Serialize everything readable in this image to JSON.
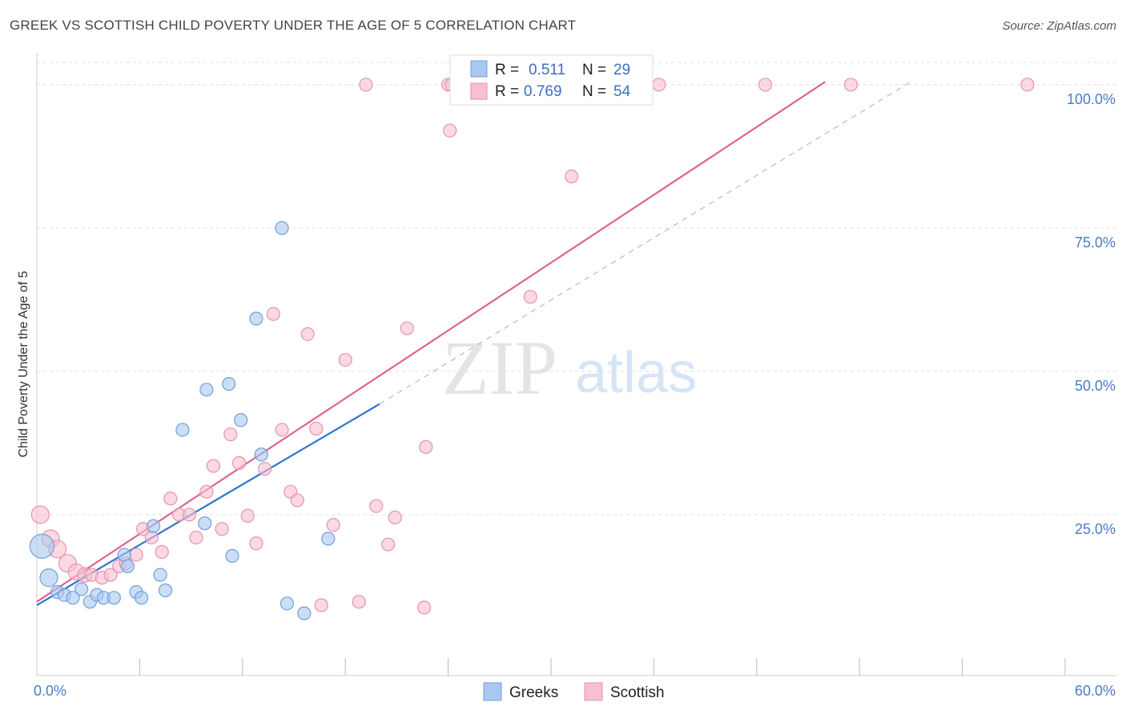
{
  "header": {
    "title": "GREEK VS SCOTTISH CHILD POVERTY UNDER THE AGE OF 5 CORRELATION CHART",
    "source": "Source: ZipAtlas.com"
  },
  "watermark": {
    "zip": "ZIP",
    "atlas": "atlas"
  },
  "legend": {
    "r_label": "R =",
    "n_label": "N =",
    "items": [
      {
        "series": "Greeks",
        "r": "0.511",
        "n": "29",
        "color": "#a9c8f0",
        "stroke": "#6f9fdc"
      },
      {
        "series": "Scottish",
        "r": "0.769",
        "n": "54",
        "color": "#f7bfd0",
        "stroke": "#e892ad"
      }
    ]
  },
  "bottom_legend": {
    "greeks": "Greeks",
    "scottish": "Scottish"
  },
  "colors": {
    "greeks_line": "#2e74d0",
    "scottish_line": "#e0638f",
    "tick": "#4a7cc9",
    "grid": "#dddddd"
  },
  "chart_data": {
    "type": "scatter",
    "title": "GREEK VS SCOTTISH CHILD POVERTY UNDER THE AGE OF 5 CORRELATION CHART",
    "xlabel": "",
    "ylabel": "Child Poverty Under the Age of 5",
    "xlim": [
      0,
      60
    ],
    "ylim": [
      0,
      105
    ],
    "x_tick_labels": [
      "0.0%",
      "60.0%"
    ],
    "y_ticks": [
      25,
      50,
      75,
      100
    ],
    "y_tick_labels": [
      "25.0%",
      "50.0%",
      "75.0%",
      "100.0%"
    ],
    "grid": true,
    "legend_position": "top-center",
    "series": [
      {
        "name": "Greeks",
        "points": [
          [
            0.3,
            19.5,
            30
          ],
          [
            0.7,
            14.0,
            22
          ],
          [
            1.2,
            11.5,
            16
          ],
          [
            1.6,
            11.0,
            16
          ],
          [
            2.1,
            10.5,
            16
          ],
          [
            2.6,
            12.0,
            16
          ],
          [
            3.1,
            9.8,
            16
          ],
          [
            3.5,
            11.0,
            16
          ],
          [
            3.9,
            10.5,
            16
          ],
          [
            4.5,
            10.5,
            16
          ],
          [
            5.1,
            18.0,
            16
          ],
          [
            5.3,
            16.0,
            16
          ],
          [
            5.8,
            11.5,
            16
          ],
          [
            6.1,
            10.5,
            16
          ],
          [
            6.8,
            23.0,
            16
          ],
          [
            7.2,
            14.5,
            16
          ],
          [
            7.5,
            11.8,
            16
          ],
          [
            8.5,
            39.8,
            16
          ],
          [
            9.8,
            23.5,
            16
          ],
          [
            9.9,
            46.8,
            16
          ],
          [
            11.2,
            47.8,
            16
          ],
          [
            11.4,
            17.8,
            16
          ],
          [
            11.9,
            41.5,
            16
          ],
          [
            12.8,
            59.2,
            16
          ],
          [
            13.1,
            35.5,
            16
          ],
          [
            14.3,
            75.0,
            16
          ],
          [
            14.6,
            9.5,
            16
          ],
          [
            15.6,
            7.8,
            16
          ],
          [
            17.0,
            20.8,
            16
          ]
        ]
      },
      {
        "name": "Scottish",
        "points": [
          [
            0.2,
            25.0,
            22
          ],
          [
            0.8,
            20.8,
            22
          ],
          [
            1.2,
            19.0,
            22
          ],
          [
            1.8,
            16.5,
            22
          ],
          [
            2.3,
            15.0,
            20
          ],
          [
            2.8,
            14.5,
            18
          ],
          [
            3.2,
            14.5,
            16
          ],
          [
            3.8,
            14.0,
            16
          ],
          [
            4.3,
            14.5,
            16
          ],
          [
            4.8,
            16.0,
            16
          ],
          [
            5.2,
            16.5,
            16
          ],
          [
            5.8,
            18.0,
            16
          ],
          [
            6.2,
            22.5,
            16
          ],
          [
            6.7,
            21.0,
            16
          ],
          [
            7.3,
            18.5,
            16
          ],
          [
            7.8,
            27.8,
            16
          ],
          [
            8.3,
            25.0,
            16
          ],
          [
            8.9,
            25.0,
            16
          ],
          [
            9.3,
            21.0,
            16
          ],
          [
            9.9,
            29.0,
            16
          ],
          [
            10.3,
            33.5,
            16
          ],
          [
            10.8,
            22.5,
            16
          ],
          [
            11.3,
            39.0,
            16
          ],
          [
            11.8,
            34.0,
            16
          ],
          [
            12.3,
            24.8,
            16
          ],
          [
            12.8,
            20.0,
            16
          ],
          [
            13.3,
            33.0,
            16
          ],
          [
            13.8,
            60.0,
            16
          ],
          [
            14.3,
            39.8,
            16
          ],
          [
            14.8,
            29.0,
            16
          ],
          [
            15.2,
            27.5,
            16
          ],
          [
            15.8,
            56.5,
            16
          ],
          [
            16.3,
            40.0,
            16
          ],
          [
            16.6,
            9.2,
            16
          ],
          [
            17.3,
            23.2,
            16
          ],
          [
            18.0,
            52.0,
            16
          ],
          [
            18.8,
            9.8,
            16
          ],
          [
            19.2,
            100.0,
            16
          ],
          [
            19.8,
            26.5,
            16
          ],
          [
            20.5,
            19.8,
            16
          ],
          [
            20.9,
            24.5,
            16
          ],
          [
            21.6,
            57.5,
            16
          ],
          [
            22.6,
            8.8,
            16
          ],
          [
            22.7,
            36.8,
            16
          ],
          [
            24.0,
            100.0,
            16
          ],
          [
            24.1,
            92.0,
            16
          ],
          [
            24.2,
            100.0,
            16
          ],
          [
            28.8,
            63.0,
            16
          ],
          [
            31.2,
            84.0,
            16
          ],
          [
            36.3,
            100.0,
            16
          ],
          [
            42.5,
            100.0,
            16
          ],
          [
            47.5,
            100.0,
            16
          ],
          [
            57.8,
            100.0,
            16
          ],
          [
            26.5,
            100.0,
            16
          ]
        ]
      }
    ],
    "trendlines": [
      {
        "series": "Greeks",
        "x": [
          0,
          20
        ],
        "y": [
          9.2,
          44.3
        ],
        "style": "solid"
      },
      {
        "series": "Greeks",
        "x": [
          20,
          51
        ],
        "y": [
          44.3,
          100.5
        ],
        "style": "dashed"
      },
      {
        "series": "Scottish",
        "x": [
          0,
          46
        ],
        "y": [
          9.8,
          100.5
        ],
        "style": "solid"
      }
    ]
  }
}
